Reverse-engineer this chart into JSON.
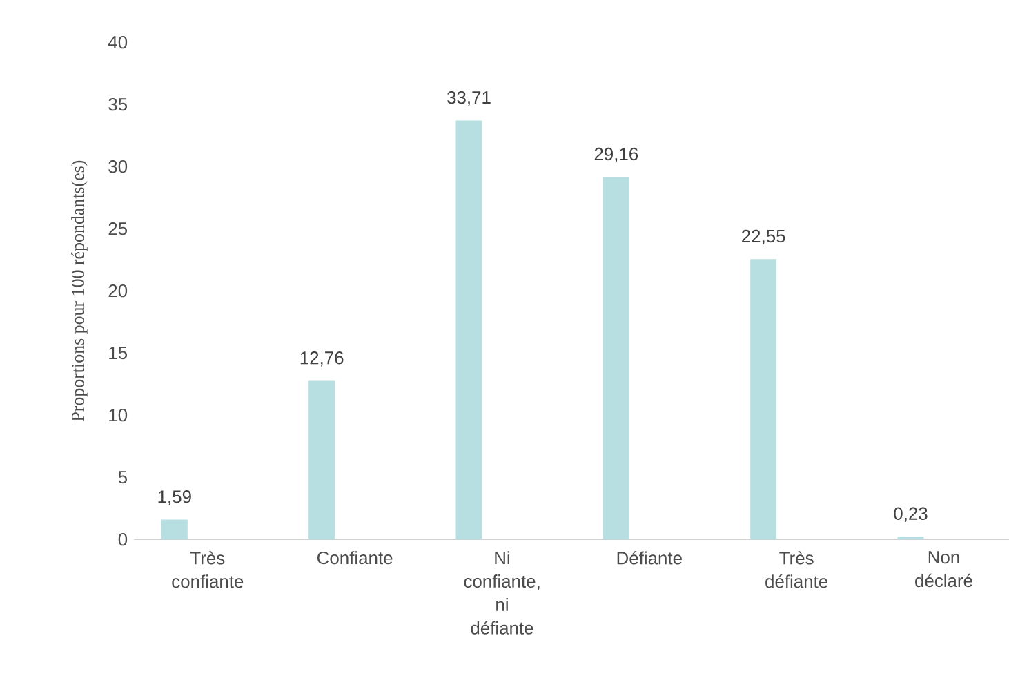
{
  "chart_data": {
    "type": "bar",
    "ylabel": "Proportions pour 100 répondants(es)",
    "categories": [
      "Très confiante",
      "Confiante",
      "Ni confiante, ni défiante",
      "Défiante",
      "Très défiante",
      "Non déclaré"
    ],
    "values": [
      1.59,
      12.76,
      33.71,
      29.16,
      22.55,
      0.23
    ],
    "value_labels": [
      "1,59",
      "12,76",
      "33,71",
      "29,16",
      "22,55",
      "0,23"
    ],
    "color": "#b7dfe2",
    "ylim": [
      0,
      40
    ],
    "yticks": [
      0,
      5,
      10,
      15,
      20,
      25,
      30,
      35,
      40
    ],
    "grid": false
  }
}
